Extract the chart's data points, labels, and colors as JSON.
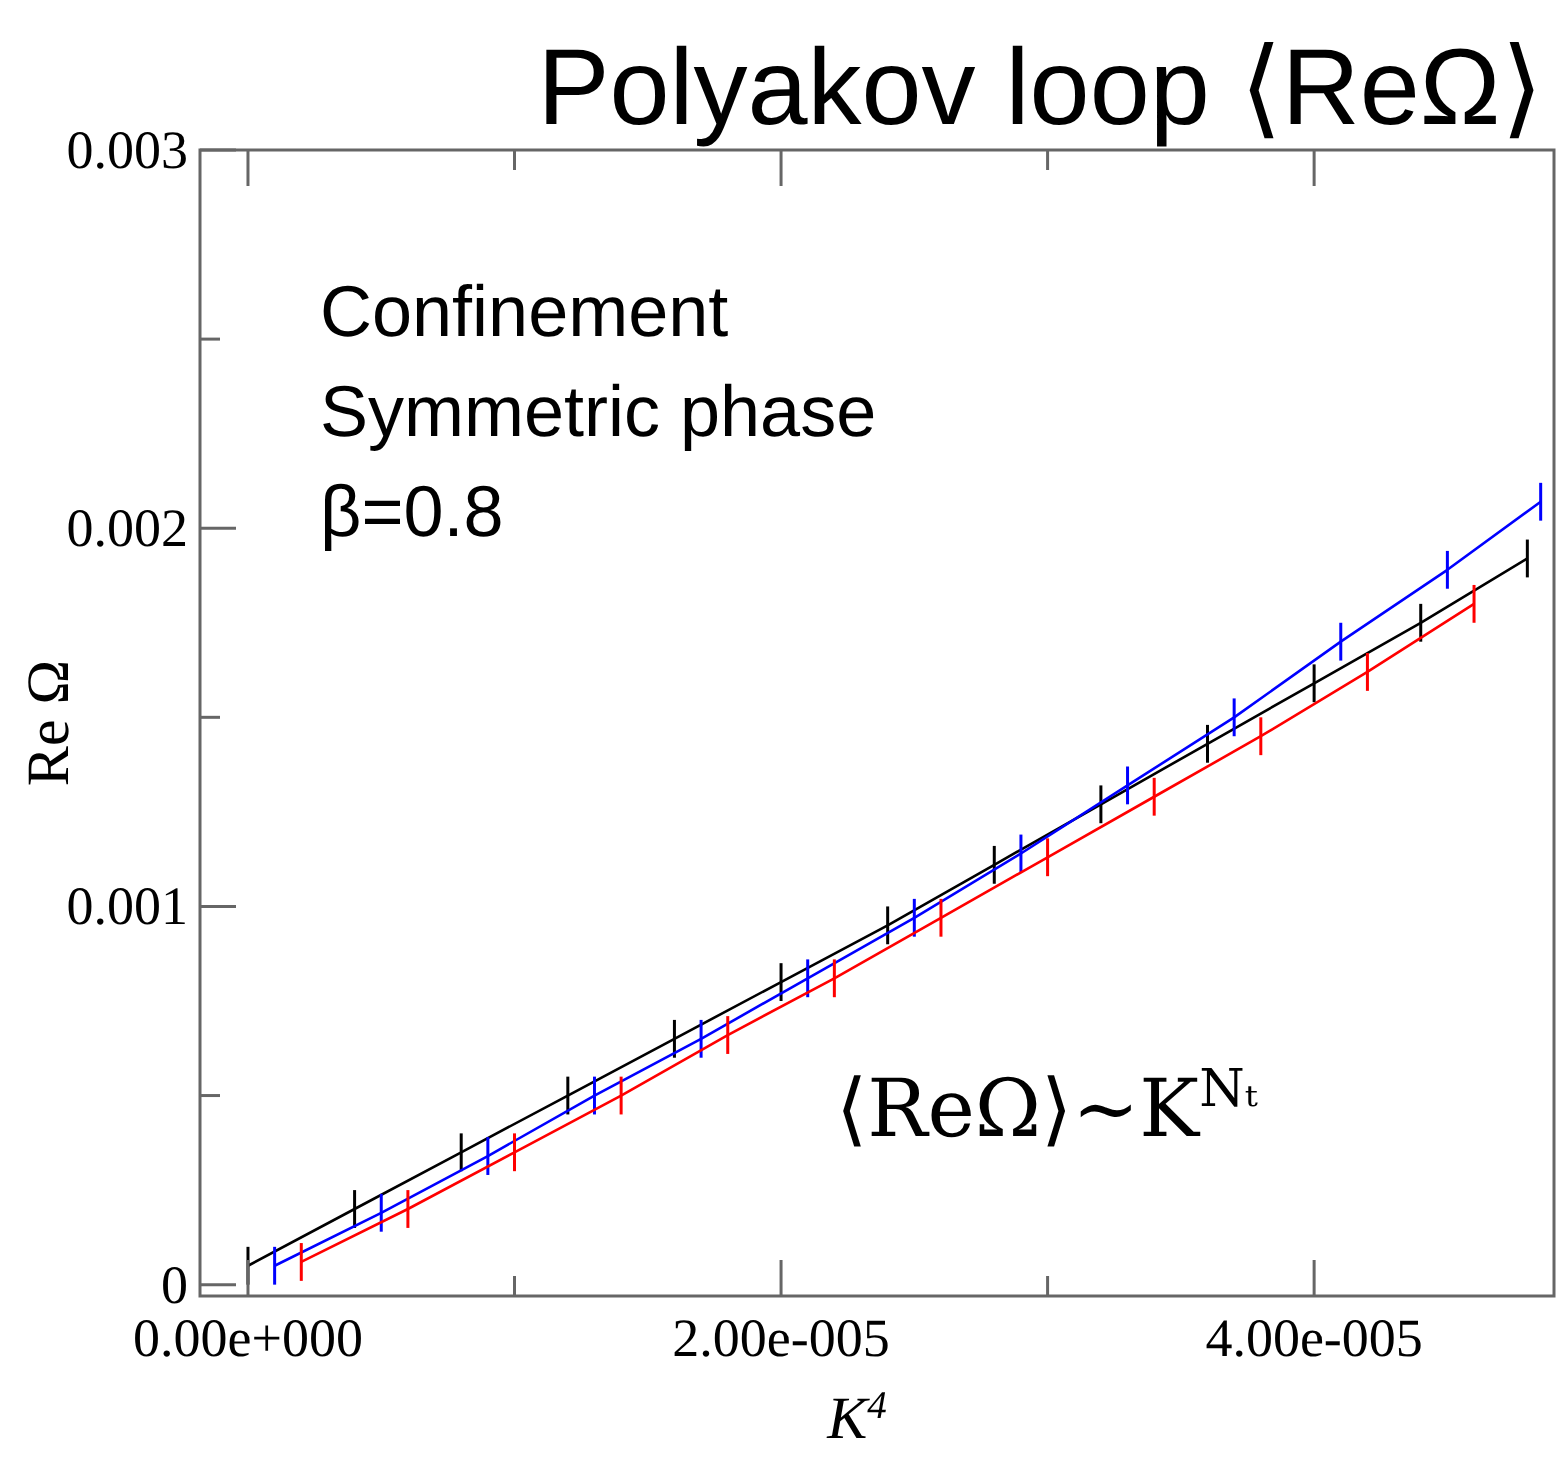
{
  "chart_data": {
    "type": "line",
    "title": "Polyakov loop ⟨ReΩ⟩",
    "xlabel": "K$^{4}$",
    "ylabel": "Re Ω",
    "annotations": [
      "Confinement",
      "Symmetric phase",
      "β=0.8",
      "⟨ReΩ⟩~K$^{Nₜ}$"
    ],
    "x": [
      0,
      4e-06,
      8e-06,
      1.2e-05,
      1.6e-05,
      2e-05,
      2.4e-05,
      2.8e-05,
      3.2e-05,
      3.6e-05,
      4e-05,
      4.4e-05,
      4.8e-05
    ],
    "series": [
      {
        "color": "#000000",
        "values": [
          5e-05,
          0.0002,
          0.00035,
          0.0005,
          0.00065,
          0.0008,
          0.00095,
          0.00111,
          0.00127,
          0.00143,
          0.00159,
          0.00175,
          0.00192
        ],
        "errors": [
          5e-05,
          5e-05,
          5e-05,
          5e-05,
          5e-05,
          5e-05,
          5e-05,
          5e-05,
          5e-05,
          5e-05,
          5e-05,
          5e-05,
          5e-05
        ]
      },
      {
        "color": "#0000ff",
        "x": [
          1e-06,
          5e-06,
          9e-06,
          1.3e-05,
          1.7e-05,
          2.1e-05,
          2.5e-05,
          2.9e-05,
          3.3e-05,
          3.7e-05,
          4.1e-05,
          4.5e-05,
          4.85e-05
        ],
        "values": [
          5e-05,
          0.00019,
          0.00034,
          0.0005,
          0.00065,
          0.00081,
          0.00097,
          0.00114,
          0.00132,
          0.0015,
          0.0017,
          0.00189,
          0.00207
        ],
        "errors": [
          5e-05,
          5e-05,
          5e-05,
          5e-05,
          5e-05,
          5e-05,
          5e-05,
          5e-05,
          5e-05,
          5e-05,
          5e-05,
          5e-05,
          5e-05
        ]
      },
      {
        "color": "#ff0000",
        "x": [
          2e-06,
          6e-06,
          1e-05,
          1.4e-05,
          1.8e-05,
          2.2e-05,
          2.6e-05,
          3e-05,
          3.4e-05,
          3.8e-05,
          4.2e-05,
          4.6e-05
        ],
        "values": [
          6e-05,
          0.0002,
          0.00035,
          0.0005,
          0.00066,
          0.00081,
          0.00097,
          0.00113,
          0.00129,
          0.00145,
          0.00162,
          0.0018
        ],
        "errors": [
          5e-05,
          5e-05,
          5e-05,
          5e-05,
          5e-05,
          5e-05,
          5e-05,
          5e-05,
          5e-05,
          5e-05,
          5e-05,
          5e-05
        ]
      }
    ],
    "xlim": [
      -1.8e-06,
      4.9e-05
    ],
    "ylim": [
      -3e-05,
      0.003
    ],
    "xticks": [
      {
        "value": 0,
        "label": "0.00e+000"
      },
      {
        "value": 1e-05,
        "label": null
      },
      {
        "value": 2e-05,
        "label": "2.00e-005"
      },
      {
        "value": 3e-05,
        "label": null
      },
      {
        "value": 4e-05,
        "label": "4.00e-005"
      }
    ],
    "yticks": [
      0,
      {
        "value": 0.0005,
        "label": null
      },
      0.001,
      {
        "value": 0.0015,
        "label": null
      },
      0.002,
      {
        "value": 0.0025,
        "label": null
      },
      0.003
    ],
    "grid": false,
    "marker": "none",
    "line_style": "solid"
  }
}
